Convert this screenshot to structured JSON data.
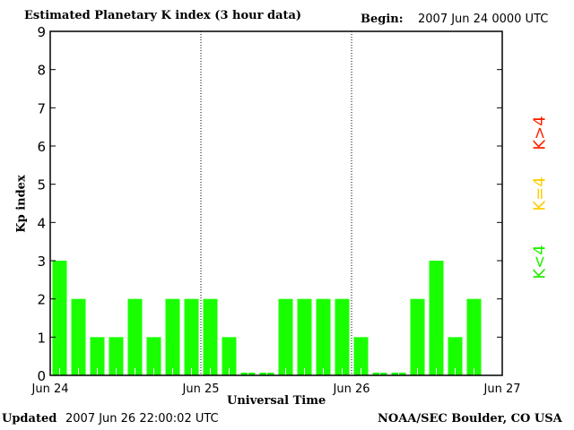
{
  "chart_data": {
    "type": "bar",
    "title": "Estimated Planetary K index (3 hour data)",
    "begin_label": "Begin:",
    "begin_value": "2007 Jun 24 0000 UTC",
    "xlabel": "Universal Time",
    "ylabel": "Kp index",
    "ylim": [
      0,
      9
    ],
    "yticks": [
      "0",
      "1",
      "2",
      "3",
      "4",
      "5",
      "6",
      "7",
      "8",
      "9"
    ],
    "xticks": [
      "Jun 24",
      "Jun 25",
      "Jun 26",
      "Jun 27"
    ],
    "bins_per_day": 8,
    "values": [
      3,
      2,
      1,
      1,
      2,
      1,
      2,
      2,
      2,
      1,
      0,
      0,
      2,
      2,
      2,
      2,
      1,
      0,
      0,
      2,
      3,
      1,
      2
    ],
    "bar_color": "#1aff00",
    "legend": [
      {
        "label": "K<4",
        "color": "#22ee00"
      },
      {
        "label": "K=4",
        "color": "#ffcc00"
      },
      {
        "label": "K>4",
        "color": "#ff2200"
      }
    ],
    "updated_label": "Updated",
    "updated_value": "2007 Jun 26 22:00:02 UTC",
    "credit": "NOAA/SEC Boulder, CO USA"
  }
}
